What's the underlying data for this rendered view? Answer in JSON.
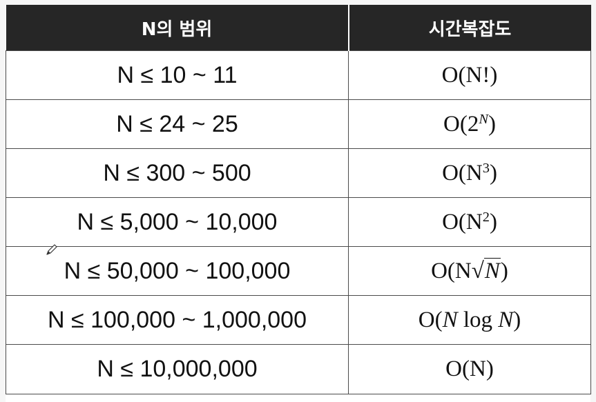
{
  "table": {
    "headers": {
      "range": "N의 범위",
      "complexity": "시간복잡도"
    },
    "rows": [
      {
        "range": "N ≤ 10 ~ 11",
        "complexity": {
          "prefix": "O(N!)"
        }
      },
      {
        "range": "N ≤ 24 ~ 25",
        "complexity": {
          "prefix": "O(2",
          "sup": "N",
          "suffix": ")"
        }
      },
      {
        "range": "N ≤ 300 ~ 500",
        "complexity": {
          "prefix": "O(N",
          "sup": "3",
          "suffix": ")"
        }
      },
      {
        "range": "N ≤ 5,000 ~ 10,000",
        "complexity": {
          "prefix": "O(N",
          "sup": "2",
          "suffix": ")"
        }
      },
      {
        "range": "N ≤ 50,000 ~ 100,000",
        "complexity": {
          "prefix": "O(N",
          "sqrt_symbol": "√",
          "radicand": "N",
          "suffix": ")"
        }
      },
      {
        "range": "N ≤ 100,000 ~ 1,000,000",
        "complexity": {
          "prefix": "O(",
          "n1": "N",
          "mid": " log ",
          "n2": "N",
          "suffix": ")"
        }
      },
      {
        "range": "N ≤ 10,000,000",
        "complexity": {
          "prefix": "O(N)"
        }
      }
    ]
  },
  "icons": {
    "cursor": "pencil-icon"
  }
}
